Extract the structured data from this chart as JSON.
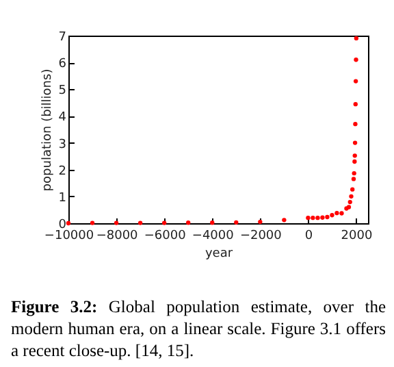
{
  "chart_data": {
    "type": "scatter",
    "xlabel": "year",
    "ylabel": "population (billions)",
    "annotations": [
      "Figure 3.2: Global population estimate, over the modern human era, on a linear scale. Figure 3.1 offers a recent close-up. [14, 15]."
    ],
    "series": [
      {
        "color": "#ff0000",
        "x": [
          -10000,
          -9000,
          -8000,
          -7000,
          -6000,
          -5000,
          -4000,
          -3000,
          -2000,
          -1000,
          0,
          200,
          400,
          600,
          800,
          1000,
          1200,
          1400,
          1600,
          1700,
          1750,
          1800,
          1850,
          1900,
          1920,
          1940,
          1950,
          1960,
          1970,
          1980,
          1990,
          2000,
          2010
        ],
        "values": [
          0.0,
          0.01,
          0.01,
          0.01,
          0.01,
          0.02,
          0.02,
          0.03,
          0.05,
          0.12,
          0.2,
          0.2,
          0.2,
          0.21,
          0.23,
          0.3,
          0.38,
          0.37,
          0.55,
          0.6,
          0.79,
          1.0,
          1.26,
          1.65,
          1.86,
          2.3,
          2.52,
          3.0,
          3.7,
          4.44,
          5.3,
          6.1,
          6.9
        ]
      }
    ],
    "xlim": [
      -10000,
      2500
    ],
    "xticks": [
      -10000,
      -8000,
      -6000,
      -4000,
      -2000,
      0,
      2000
    ],
    "ylim": [
      0,
      7
    ],
    "yticks": [
      0,
      1,
      2,
      3,
      4,
      5,
      6,
      7
    ],
    "marker": "circle",
    "grid": false
  }
}
